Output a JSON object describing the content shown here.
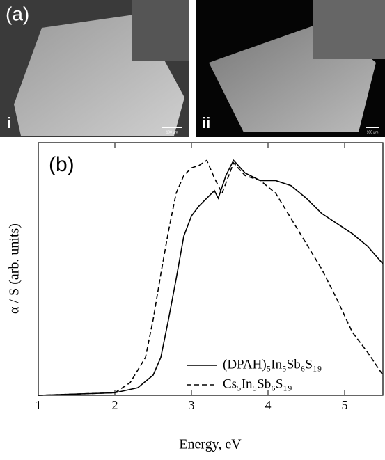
{
  "panel_a": {
    "label": "(a)",
    "images": [
      {
        "label": "i",
        "scale_bar": "100 μm"
      },
      {
        "label": "ii",
        "scale_bar": "100 μm"
      }
    ]
  },
  "chart_data": {
    "type": "line",
    "title": "(b)",
    "x_label": "Energy, eV",
    "y_label": "α / S (arb. units)",
    "xlim": [
      1,
      5.5
    ],
    "xticks": [
      1,
      2,
      3,
      4,
      5
    ],
    "ylim": [
      0,
      1
    ],
    "legend": "lower right",
    "series": [
      {
        "name": "(DPAH)₅In₅Sb₆S₁₉",
        "color": "#000000",
        "dash": "solid",
        "x": [
          1,
          2,
          2.3,
          2.5,
          2.6,
          2.7,
          2.8,
          2.9,
          3.0,
          3.1,
          3.2,
          3.3,
          3.35,
          3.45,
          3.55,
          3.7,
          3.9,
          4.1,
          4.3,
          4.5,
          4.7,
          4.9,
          5.1,
          5.3,
          5.5
        ],
        "values": [
          0,
          0.01,
          0.03,
          0.08,
          0.15,
          0.3,
          0.46,
          0.63,
          0.71,
          0.75,
          0.78,
          0.81,
          0.78,
          0.87,
          0.93,
          0.88,
          0.85,
          0.85,
          0.83,
          0.78,
          0.72,
          0.68,
          0.64,
          0.59,
          0.52
        ]
      },
      {
        "name": "Cs₅In₅Sb₆S₁₉",
        "color": "#000000",
        "dash": "dashed",
        "x": [
          1,
          2,
          2.2,
          2.4,
          2.5,
          2.6,
          2.7,
          2.8,
          2.9,
          3.0,
          3.1,
          3.2,
          3.3,
          3.4,
          3.55,
          3.7,
          3.9,
          4.1,
          4.3,
          4.5,
          4.7,
          4.9,
          5.1,
          5.3,
          5.5
        ],
        "values": [
          0,
          0.01,
          0.05,
          0.15,
          0.3,
          0.48,
          0.65,
          0.8,
          0.87,
          0.9,
          0.91,
          0.93,
          0.86,
          0.8,
          0.92,
          0.87,
          0.85,
          0.8,
          0.7,
          0.6,
          0.5,
          0.38,
          0.25,
          0.17,
          0.08
        ]
      }
    ]
  }
}
